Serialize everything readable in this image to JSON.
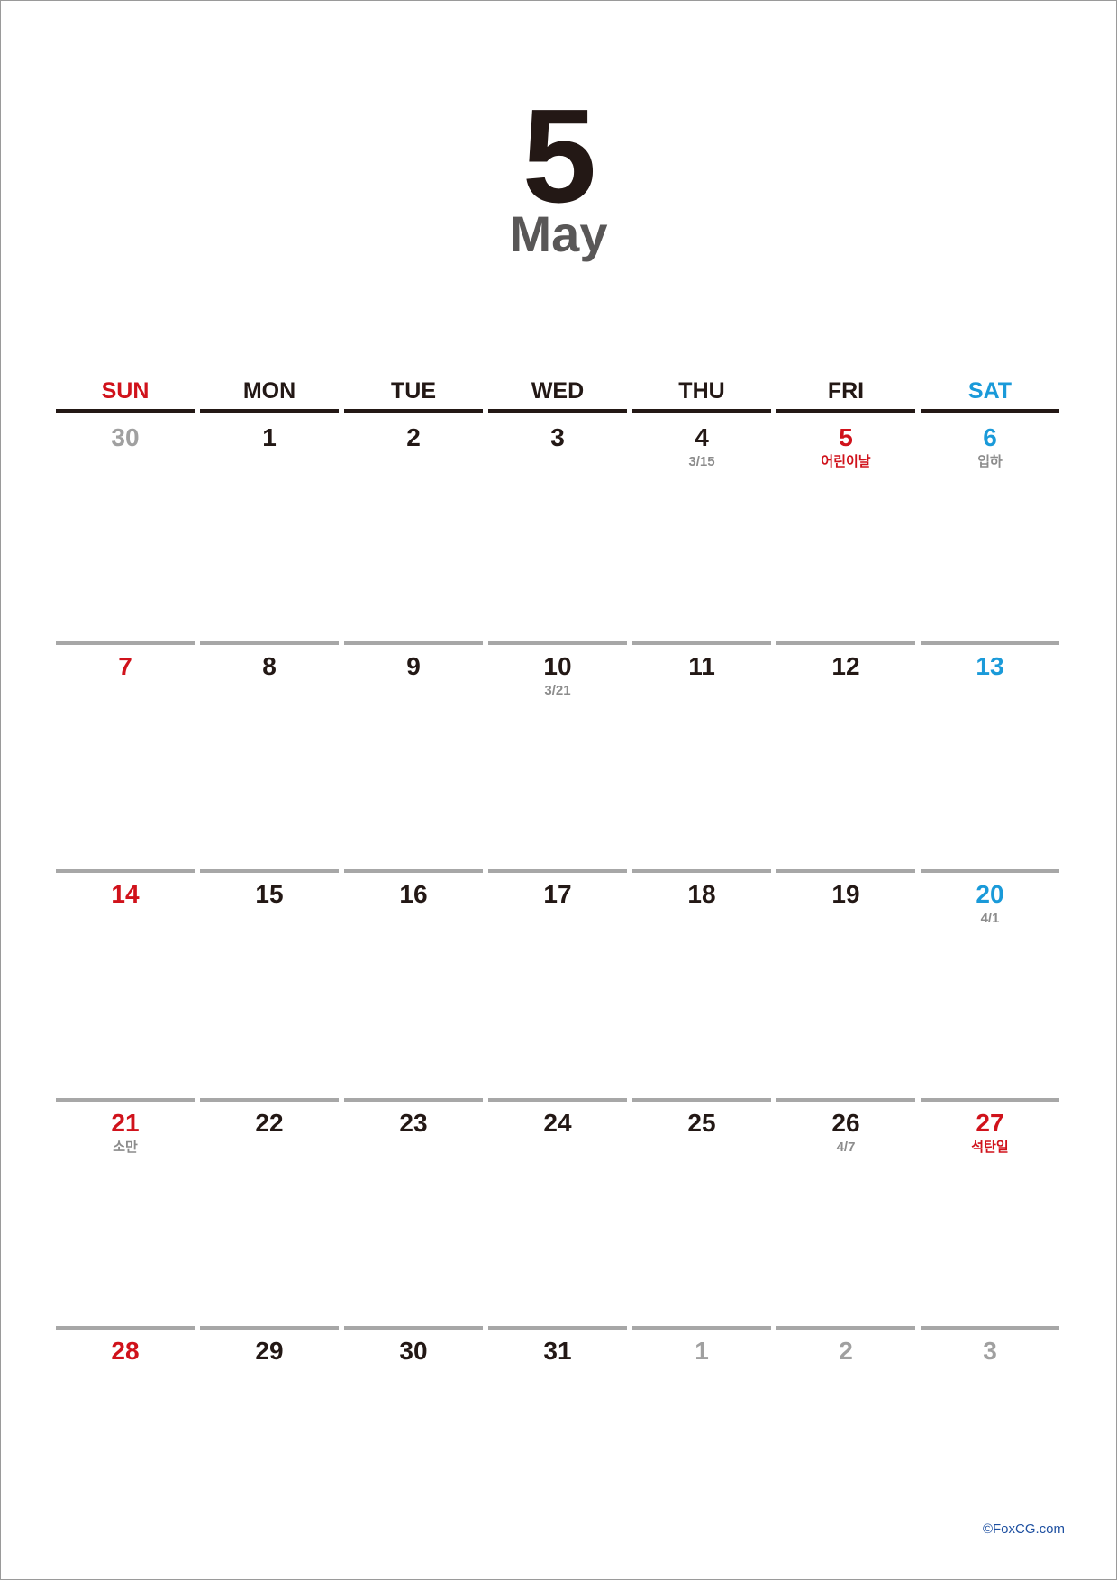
{
  "colors": {
    "text": "#231815",
    "month_name": "#595757",
    "sunday": "#d0121b",
    "saturday": "#1a9ad9",
    "holiday": "#d0121b",
    "muted": "#a0a0a0",
    "note": "#8c8c8c",
    "rule_header": "#231815",
    "rule_week": "#a7a7a7",
    "copyright": "#1d4fa0"
  },
  "header": {
    "month_number": "5",
    "month_name": "May"
  },
  "weekdays": [
    {
      "label": "SUN",
      "color": "#d0121b"
    },
    {
      "label": "MON",
      "color": "#231815"
    },
    {
      "label": "TUE",
      "color": "#231815"
    },
    {
      "label": "WED",
      "color": "#231815"
    },
    {
      "label": "THU",
      "color": "#231815"
    },
    {
      "label": "FRI",
      "color": "#231815"
    },
    {
      "label": "SAT",
      "color": "#1a9ad9"
    }
  ],
  "weeks": [
    [
      {
        "day": "30",
        "status": "other"
      },
      {
        "day": "1",
        "status": "normal"
      },
      {
        "day": "2",
        "status": "normal"
      },
      {
        "day": "3",
        "status": "normal"
      },
      {
        "day": "4",
        "status": "normal",
        "note": "3/15"
      },
      {
        "day": "5",
        "status": "holiday",
        "note": "어린이날",
        "note_status": "holiday"
      },
      {
        "day": "6",
        "status": "saturday",
        "note": "입하"
      }
    ],
    [
      {
        "day": "7",
        "status": "sunday"
      },
      {
        "day": "8",
        "status": "normal"
      },
      {
        "day": "9",
        "status": "normal"
      },
      {
        "day": "10",
        "status": "normal",
        "note": "3/21"
      },
      {
        "day": "11",
        "status": "normal"
      },
      {
        "day": "12",
        "status": "normal"
      },
      {
        "day": "13",
        "status": "saturday"
      }
    ],
    [
      {
        "day": "14",
        "status": "sunday"
      },
      {
        "day": "15",
        "status": "normal"
      },
      {
        "day": "16",
        "status": "normal"
      },
      {
        "day": "17",
        "status": "normal"
      },
      {
        "day": "18",
        "status": "normal"
      },
      {
        "day": "19",
        "status": "normal"
      },
      {
        "day": "20",
        "status": "saturday",
        "note": "4/1"
      }
    ],
    [
      {
        "day": "21",
        "status": "sunday",
        "note": "소만"
      },
      {
        "day": "22",
        "status": "normal"
      },
      {
        "day": "23",
        "status": "normal"
      },
      {
        "day": "24",
        "status": "normal"
      },
      {
        "day": "25",
        "status": "normal"
      },
      {
        "day": "26",
        "status": "normal",
        "note": "4/7"
      },
      {
        "day": "27",
        "status": "holiday",
        "note": "석탄일",
        "note_status": "holiday"
      }
    ],
    [
      {
        "day": "28",
        "status": "sunday"
      },
      {
        "day": "29",
        "status": "normal"
      },
      {
        "day": "30",
        "status": "normal"
      },
      {
        "day": "31",
        "status": "normal"
      },
      {
        "day": "1",
        "status": "other"
      },
      {
        "day": "2",
        "status": "other"
      },
      {
        "day": "3",
        "status": "other"
      }
    ]
  ],
  "footer": {
    "copyright": "©FoxCG.com"
  }
}
